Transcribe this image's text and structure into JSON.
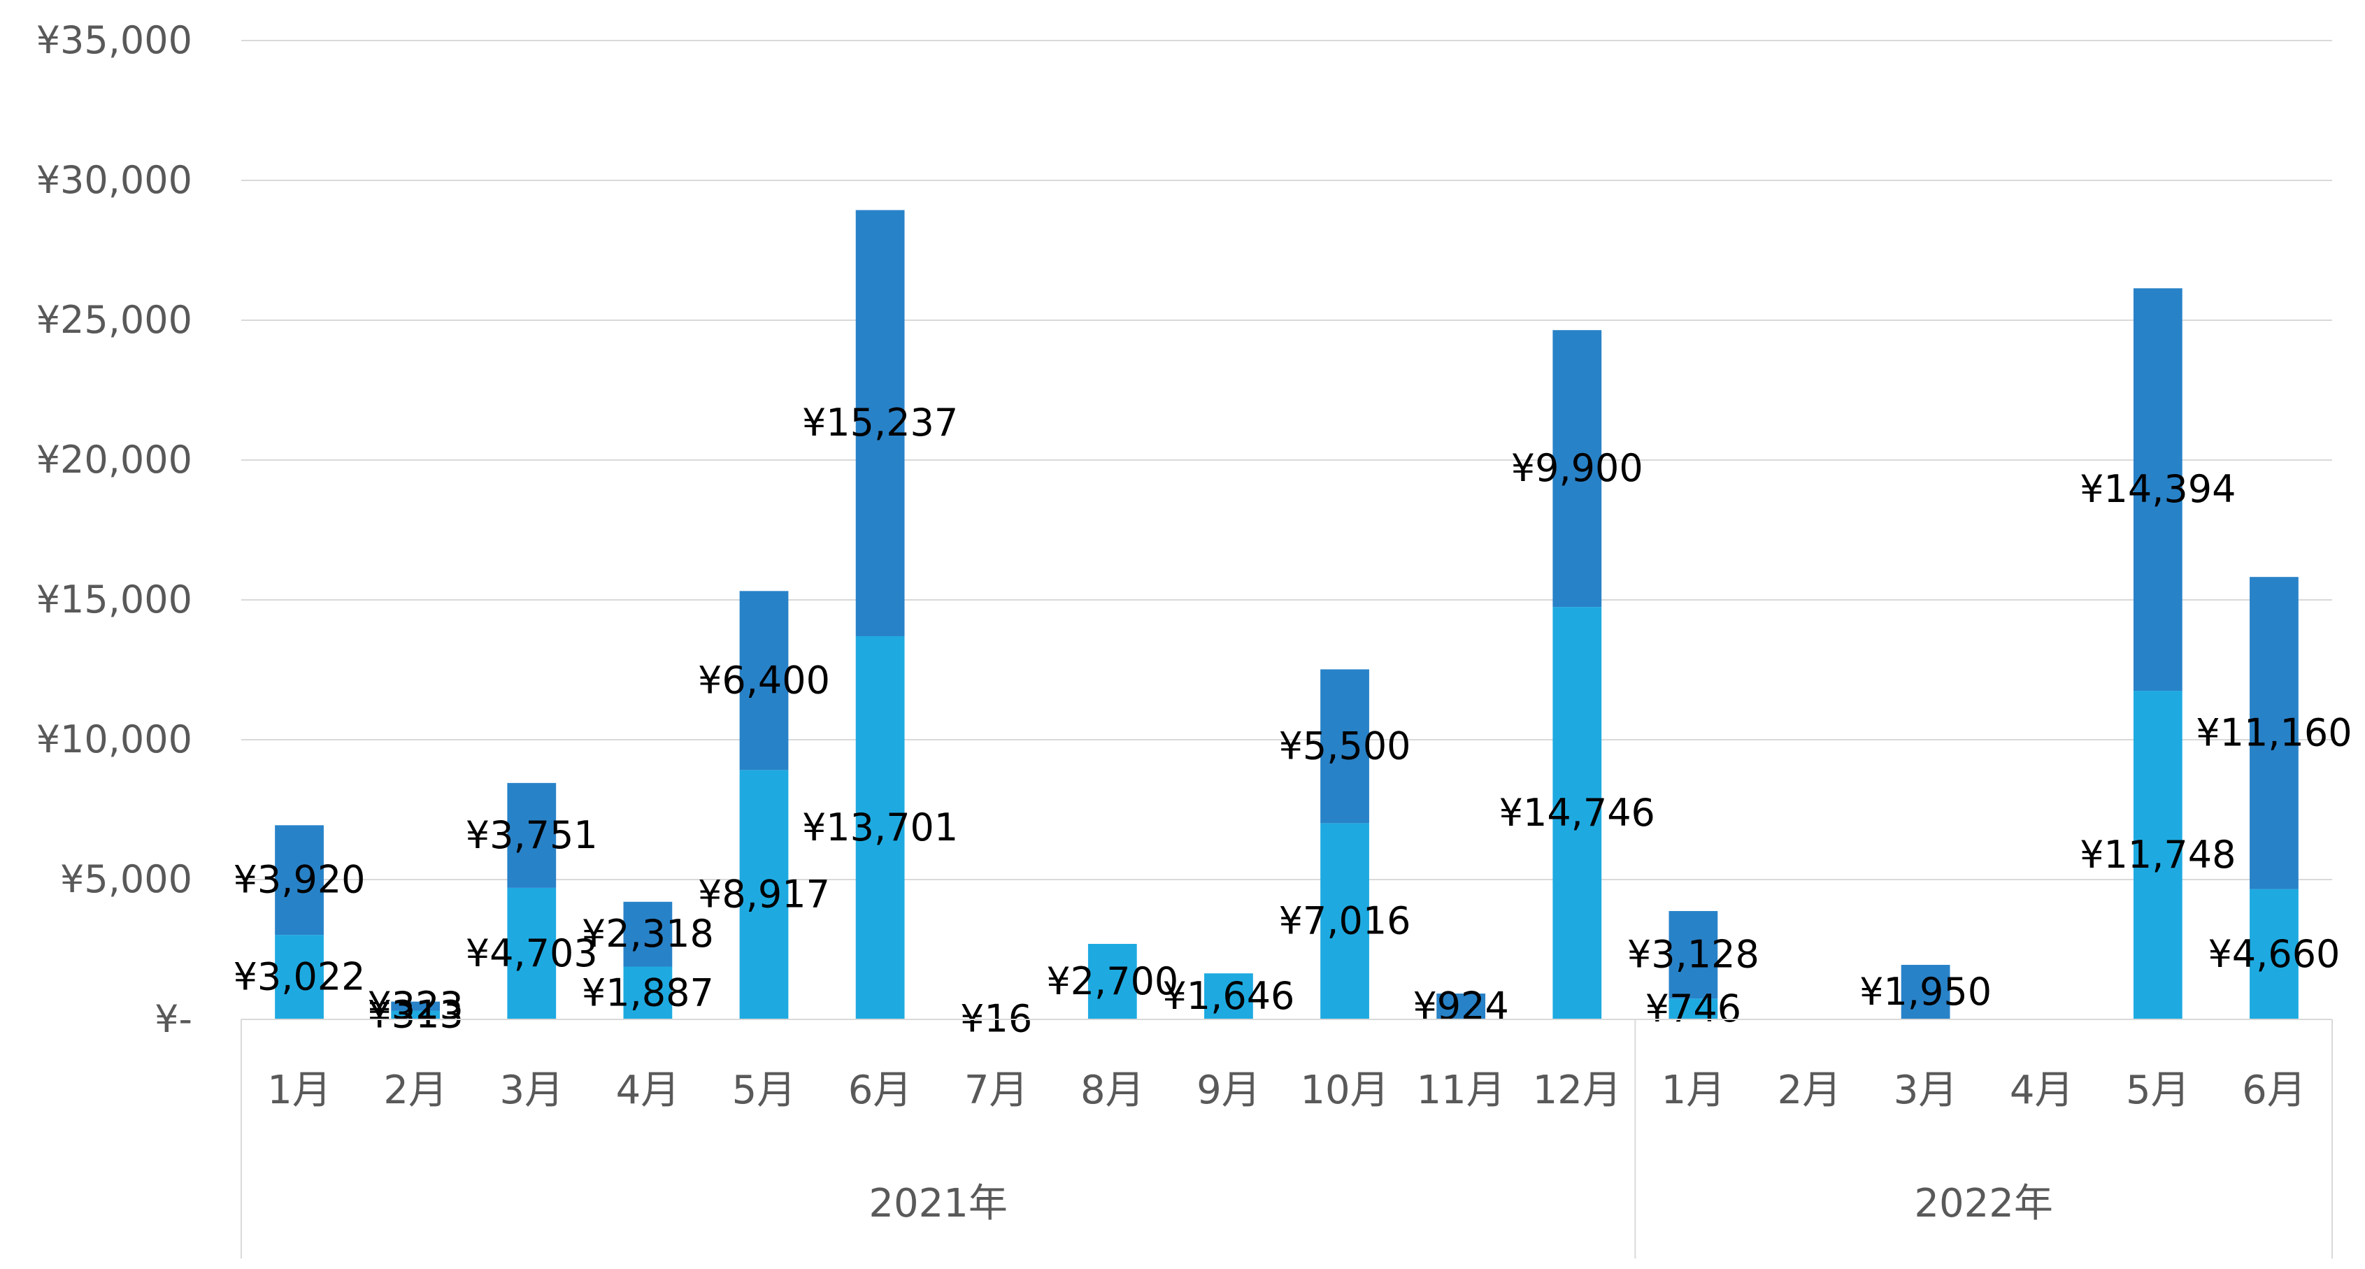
{
  "chart_data": {
    "type": "bar",
    "stacked": true,
    "groups": [
      {
        "label": "2021年",
        "categories": [
          "1月",
          "2月",
          "3月",
          "4月",
          "5月",
          "6月",
          "7月",
          "8月",
          "9月",
          "10月",
          "11月",
          "12月"
        ]
      },
      {
        "label": "2022年",
        "categories": [
          "1月",
          "2月",
          "3月",
          "4月",
          "5月",
          "6月"
        ]
      }
    ],
    "series": [
      {
        "color": "#1eaae1",
        "values": [
          3022,
          313,
          4703,
          1887,
          8917,
          13701,
          16,
          2700,
          1646,
          7016,
          0,
          14746,
          746,
          0,
          0,
          0,
          11748,
          4660
        ],
        "labels": [
          "¥3,022",
          "¥313",
          "¥4,703",
          "¥1,887",
          "¥8,917",
          "¥13,701",
          "¥16",
          "¥2,700",
          "¥1,646",
          "¥7,016",
          "",
          "¥14,746",
          "¥746",
          "",
          "",
          "",
          "¥11,748",
          "¥4,660"
        ]
      },
      {
        "color": "#2882c8",
        "values": [
          3920,
          323,
          3751,
          2318,
          6400,
          15237,
          0,
          0,
          0,
          5500,
          924,
          9900,
          3128,
          0,
          1950,
          0,
          14394,
          11160
        ],
        "labels": [
          "¥3,920",
          "¥323",
          "¥3,751",
          "¥2,318",
          "¥6,400",
          "¥15,237",
          "",
          "",
          "",
          "¥5,500",
          "¥924",
          "¥9,900",
          "¥3,128",
          "",
          "¥1,950",
          "",
          "¥14,394",
          "¥11,160"
        ]
      }
    ],
    "ylim": [
      0,
      35000
    ],
    "yticks": [
      0,
      5000,
      10000,
      15000,
      20000,
      25000,
      30000,
      35000
    ],
    "ytick_labels": [
      "¥-",
      "¥5,000",
      "¥10,000",
      "¥15,000",
      "¥20,000",
      "¥25,000",
      "¥30,000",
      "¥35,000"
    ],
    "grid": true,
    "legend": "none"
  }
}
